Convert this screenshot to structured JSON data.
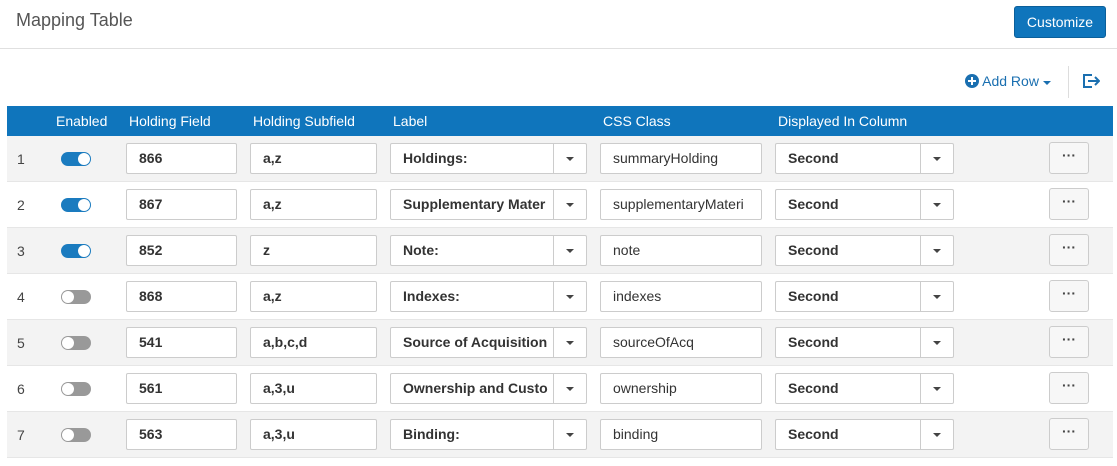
{
  "header": {
    "title": "Mapping Table",
    "button": "Customize"
  },
  "toolbar": {
    "add_row": "Add Row"
  },
  "table": {
    "columns": [
      "Enabled",
      "Holding Field",
      "Holding Subfield",
      "Label",
      "CSS Class",
      "Displayed In Column"
    ],
    "rows": [
      {
        "number": "1",
        "enabled": true,
        "holding_field": "866",
        "subfield": "a,z",
        "label": "Holdings:",
        "css_class": "summaryHolding",
        "column": "Second"
      },
      {
        "number": "2",
        "enabled": true,
        "holding_field": "867",
        "subfield": "a,z",
        "label": "Supplementary Mater",
        "css_class": "supplementaryMateri",
        "column": "Second"
      },
      {
        "number": "3",
        "enabled": true,
        "holding_field": "852",
        "subfield": "z",
        "label": "Note:",
        "css_class": "note",
        "column": "Second"
      },
      {
        "number": "4",
        "enabled": false,
        "holding_field": "868",
        "subfield": "a,z",
        "label": "Indexes:",
        "css_class": "indexes",
        "column": "Second"
      },
      {
        "number": "5",
        "enabled": false,
        "holding_field": "541",
        "subfield": "a,b,c,d",
        "label": "Source of Acquisition",
        "css_class": "sourceOfAcq",
        "column": "Second"
      },
      {
        "number": "6",
        "enabled": false,
        "holding_field": "561",
        "subfield": "a,3,u",
        "label": "Ownership and Custo",
        "css_class": "ownership",
        "column": "Second"
      },
      {
        "number": "7",
        "enabled": false,
        "holding_field": "563",
        "subfield": "a,3,u",
        "label": "Binding:",
        "css_class": "binding",
        "column": "Second"
      }
    ]
  }
}
